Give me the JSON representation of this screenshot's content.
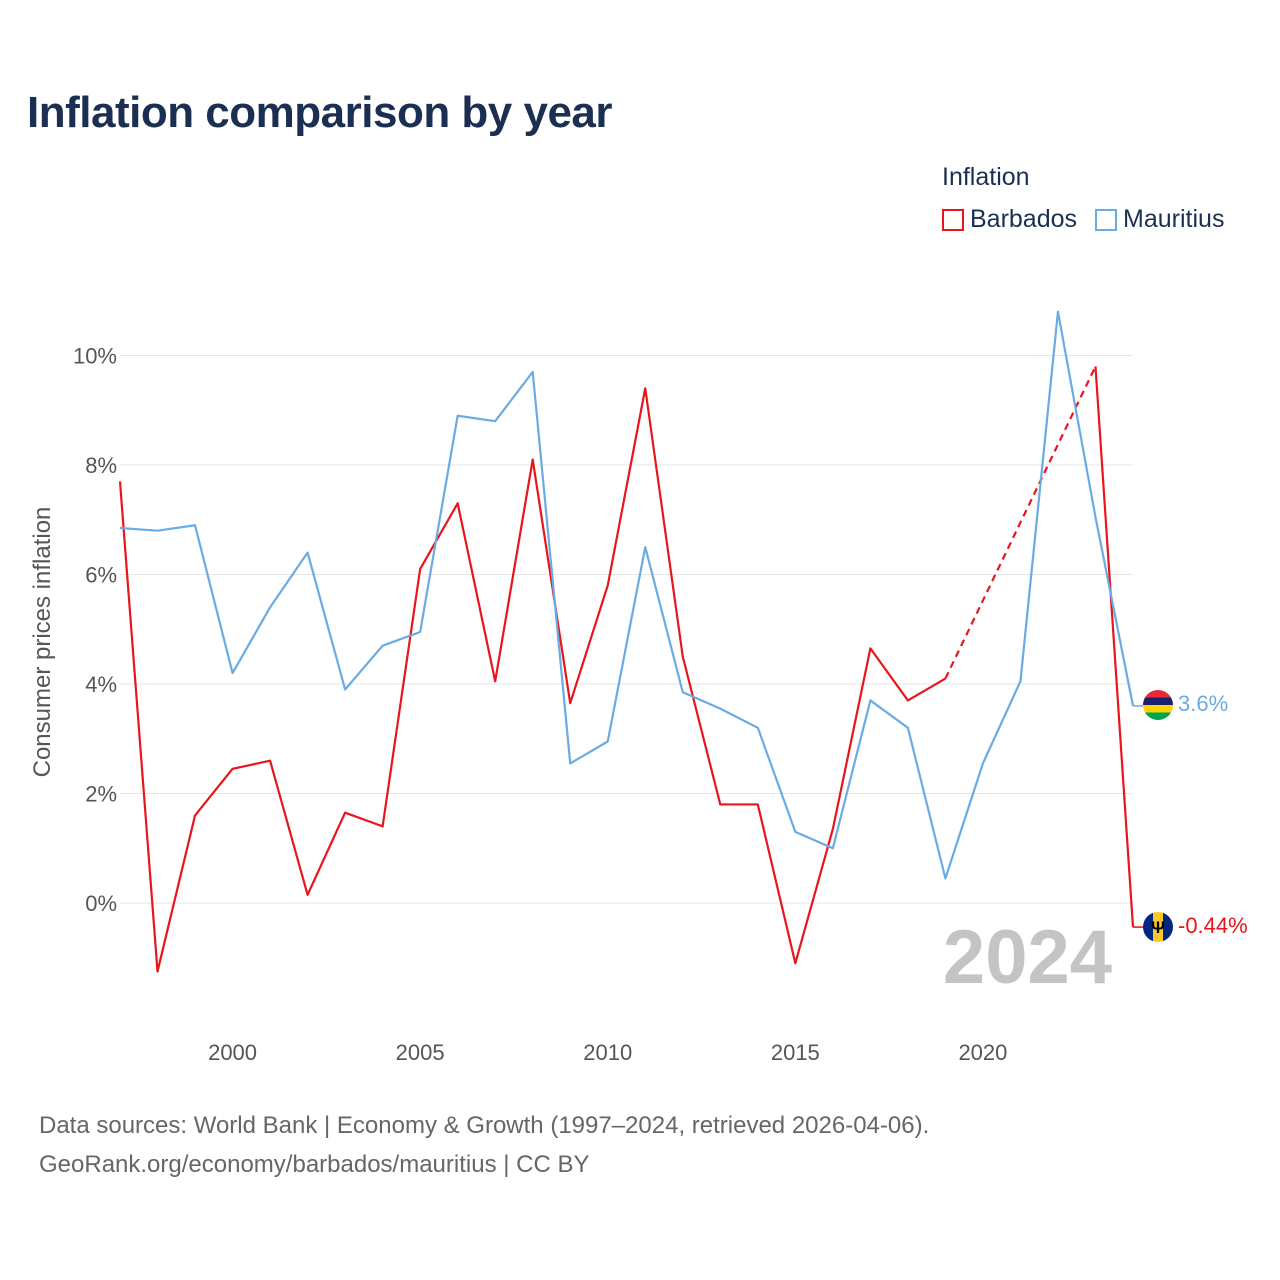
{
  "title": "Inflation comparison by year",
  "legend": {
    "title": "Inflation",
    "items": [
      {
        "label": "Barbados",
        "color": "#e8151b"
      },
      {
        "label": "Mauritius",
        "color": "#6aabe4"
      }
    ]
  },
  "source": {
    "line1": "Data sources: World Bank | Economy & Growth (1997–2024, retrieved 2026-04-06).",
    "line2": "GeoRank.org/economy/barbados/mauritius | CC BY"
  },
  "chart_data": {
    "type": "line",
    "title": "Inflation comparison by year",
    "xlabel": "",
    "ylabel": "Consumer prices inflation",
    "xlim": [
      1997,
      2024
    ],
    "ylim": [
      -2,
      11
    ],
    "x_ticks": [
      2000,
      2005,
      2010,
      2015,
      2020
    ],
    "y_ticks": [
      0,
      2,
      4,
      6,
      8,
      10
    ],
    "y_tick_labels": [
      "0%",
      "2%",
      "4%",
      "6%",
      "8%",
      "10%"
    ],
    "grid": true,
    "year_label": "2024",
    "x": [
      1997,
      1998,
      1999,
      2000,
      2001,
      2002,
      2003,
      2004,
      2005,
      2006,
      2007,
      2008,
      2009,
      2010,
      2011,
      2012,
      2013,
      2014,
      2015,
      2016,
      2017,
      2018,
      2019,
      2020,
      2021,
      2022,
      2023,
      2024
    ],
    "series": [
      {
        "name": "Barbados",
        "color": "#e8151b",
        "values": [
          7.7,
          -1.25,
          1.6,
          2.45,
          2.6,
          0.15,
          1.65,
          1.4,
          6.1,
          7.3,
          4.05,
          8.1,
          3.65,
          5.8,
          9.4,
          4.5,
          1.8,
          1.8,
          -1.1,
          1.35,
          4.65,
          3.7,
          4.1,
          null,
          null,
          null,
          9.8,
          -0.44
        ],
        "gap_dashed": true,
        "end_label": "-0.44%"
      },
      {
        "name": "Mauritius",
        "color": "#6aabe4",
        "values": [
          6.85,
          6.8,
          6.9,
          4.2,
          5.4,
          6.4,
          3.9,
          4.7,
          4.95,
          8.9,
          8.8,
          9.7,
          2.55,
          2.95,
          6.5,
          3.85,
          3.55,
          3.2,
          1.3,
          1.0,
          3.7,
          3.2,
          0.45,
          2.55,
          4.05,
          10.8,
          7.05,
          3.6
        ],
        "gap_dashed": false,
        "end_label": "3.6%"
      }
    ]
  }
}
